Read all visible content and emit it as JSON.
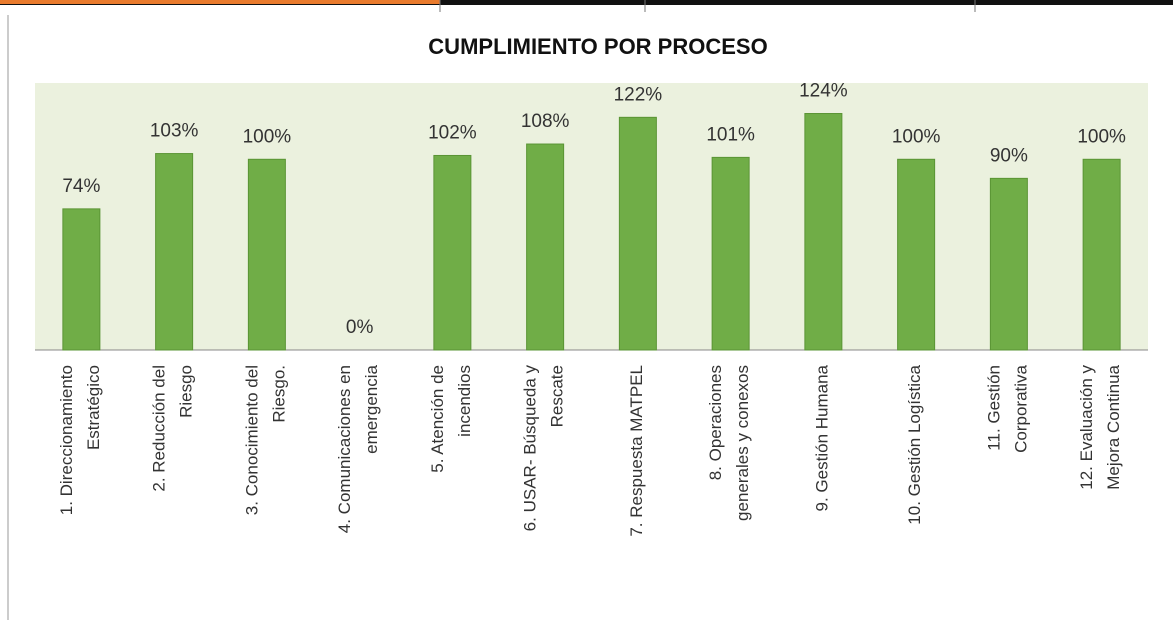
{
  "chart_data": {
    "type": "bar",
    "title": "CUMPLIMIENTO POR PROCESO",
    "categories": [
      "1. Direccionamiento\nEstratégico",
      "2. Reducción del\nRiesgo",
      "3. Conocimiento del\nRiesgo.",
      "4. Comunicaciones en\nemergencia",
      "5. Atención de\nincendios",
      "6. USAR- Búsqueda y\nRescate",
      "7. Respuesta MATPEL",
      "8. Operaciones\ngenerales y conexos",
      "9. Gestión Humana",
      "10. Gestión Logística",
      "11. Gestión\nCorporativa",
      "12. Evaluación y\nMejora Continua"
    ],
    "values": [
      74,
      103,
      100,
      0,
      102,
      108,
      122,
      101,
      124,
      100,
      90,
      100
    ],
    "value_labels": [
      "74%",
      "103%",
      "100%",
      "0%",
      "102%",
      "108%",
      "122%",
      "101%",
      "124%",
      "100%",
      "90%",
      "100%"
    ],
    "color": "#70ad47",
    "ylim": [
      0,
      140
    ]
  }
}
